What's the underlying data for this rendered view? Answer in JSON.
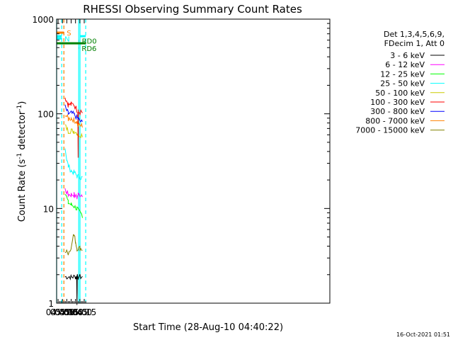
{
  "chart_data": {
    "type": "line",
    "title": "RHESSI Observing Summary Count Rates",
    "xlabel": "Start Time (28-Aug-10 04:40:22)",
    "ylabel": "Count Rate (s⁻¹ detector⁻¹)",
    "ylabel_parts": [
      "Count Rate (s",
      "-1",
      " detector",
      "-1",
      ")"
    ],
    "yscale": "log",
    "ylim": [
      1,
      1000
    ],
    "xlim_min": [
      280,
      1220
    ],
    "x_ticks": [
      {
        "m": 285,
        "label": "04:45"
      },
      {
        "m": 300,
        "label": "05:00"
      },
      {
        "m": 315,
        "label": "05:15"
      },
      {
        "m": 330,
        "label": "05:30"
      },
      {
        "m": 345,
        "label": "05:45"
      },
      {
        "m": 360,
        "label": "06:00"
      },
      {
        "m": 375,
        "label": "06:15"
      }
    ],
    "y_ticks": [
      {
        "v": 1,
        "label": "1"
      },
      {
        "v": 10,
        "label": "10"
      },
      {
        "v": 100,
        "label": "100"
      },
      {
        "v": 1000,
        "label": "1000"
      }
    ],
    "legend_header": [
      "Det 1,3,4,5,6,9,",
      "FDecim 1, Att 0"
    ],
    "legend_position": "right",
    "series": [
      {
        "name": "3 - 6 keV",
        "color": "#000000",
        "points": [
          [
            309,
            1.9
          ],
          [
            330,
            1.9
          ],
          [
            345,
            1.9
          ],
          [
            349,
            1.9
          ],
          [
            350,
            1.0
          ],
          [
            351,
            1.9
          ],
          [
            369,
            1.9
          ]
        ]
      },
      {
        "name": "6 - 12 keV",
        "color": "#ff00ff",
        "points": [
          [
            309,
            16
          ],
          [
            320,
            14
          ],
          [
            330,
            14
          ],
          [
            340,
            14
          ],
          [
            350,
            13
          ],
          [
            354,
            14
          ],
          [
            369,
            14
          ]
        ]
      },
      {
        "name": "12 - 25 keV",
        "color": "#00ff00",
        "points": [
          [
            309,
            15
          ],
          [
            320,
            11.5
          ],
          [
            330,
            11
          ],
          [
            340,
            10.5
          ],
          [
            350,
            10
          ],
          [
            354,
            9.5
          ],
          [
            369,
            8.5
          ]
        ]
      },
      {
        "name": "25 - 50 keV",
        "color": "#00ffff",
        "points": [
          [
            309,
            44
          ],
          [
            315,
            33
          ],
          [
            320,
            28
          ],
          [
            330,
            25
          ],
          [
            340,
            24
          ],
          [
            350,
            22
          ],
          [
            369,
            21
          ]
        ]
      },
      {
        "name": "50 - 100 keV",
        "color": "#cccc00",
        "points": [
          [
            309,
            75
          ],
          [
            320,
            66
          ],
          [
            330,
            66
          ],
          [
            340,
            66
          ],
          [
            350,
            63
          ],
          [
            354,
            60
          ],
          [
            369,
            60
          ]
        ]
      },
      {
        "name": "100 - 300 keV",
        "color": "#ff0000",
        "points": [
          [
            309,
            150
          ],
          [
            320,
            125
          ],
          [
            330,
            125
          ],
          [
            340,
            125
          ],
          [
            350,
            110
          ],
          [
            353,
            105
          ],
          [
            354,
            35
          ],
          [
            355,
            105
          ],
          [
            369,
            102
          ]
        ]
      },
      {
        "name": "300 - 800 keV",
        "color": "#0000ff",
        "points": [
          [
            309,
            118
          ],
          [
            320,
            100
          ],
          [
            330,
            102
          ],
          [
            340,
            98
          ],
          [
            350,
            92
          ],
          [
            354,
            88
          ],
          [
            369,
            80
          ]
        ]
      },
      {
        "name": "800 - 7000 keV",
        "color": "#ff8000",
        "points": [
          [
            309,
            100
          ],
          [
            320,
            88
          ],
          [
            330,
            90
          ],
          [
            340,
            86
          ],
          [
            350,
            82
          ],
          [
            354,
            75
          ],
          [
            369,
            75
          ]
        ]
      },
      {
        "name": "7000 - 15000 keV",
        "color": "#808000",
        "points": [
          [
            309,
            3.5
          ],
          [
            320,
            3.4
          ],
          [
            330,
            3.8
          ],
          [
            335,
            5
          ],
          [
            340,
            5.2
          ],
          [
            345,
            4.5
          ],
          [
            350,
            3.8
          ],
          [
            360,
            3.8
          ],
          [
            369,
            3.7
          ]
        ]
      }
    ],
    "flag_bars": [
      {
        "label": "",
        "color": "#00ffff",
        "y": 660,
        "segments": [
          [
            280,
            297.5
          ],
          [
            360,
            380
          ]
        ]
      },
      {
        "label": "N",
        "color": "#00ffff",
        "y": 625,
        "segments": [
          [
            280,
            297.5
          ]
        ]
      },
      {
        "label": "S",
        "color": "#ff8000",
        "y": 720,
        "segments": [
          [
            280,
            305
          ]
        ]
      },
      {
        "label": "",
        "color": "#008000",
        "y": 555,
        "segments": [
          [
            280,
            380
          ]
        ]
      },
      {
        "label": "RD0",
        "color": "#008000",
        "y": 590,
        "segments": [
          [
            356.5,
            357
          ]
        ]
      },
      {
        "label": "RD6",
        "color": "#008000",
        "y": 495,
        "segments": [
          [
            356,
            356.5
          ]
        ]
      }
    ],
    "vlines": [
      {
        "m": 280,
        "color": "#00ffff",
        "dash": false
      },
      {
        "m": 297.5,
        "color": "#00ffff",
        "dash": true
      },
      {
        "m": 305,
        "color": "#ff8000",
        "dash": true
      },
      {
        "m": 356,
        "color": "#00ffff",
        "dash": false
      },
      {
        "m": 360.5,
        "color": "#00ffff",
        "dash": false
      },
      {
        "m": 380,
        "color": "#00ffff",
        "dash": true
      }
    ],
    "footer": "16-Oct-2021 01:51"
  }
}
